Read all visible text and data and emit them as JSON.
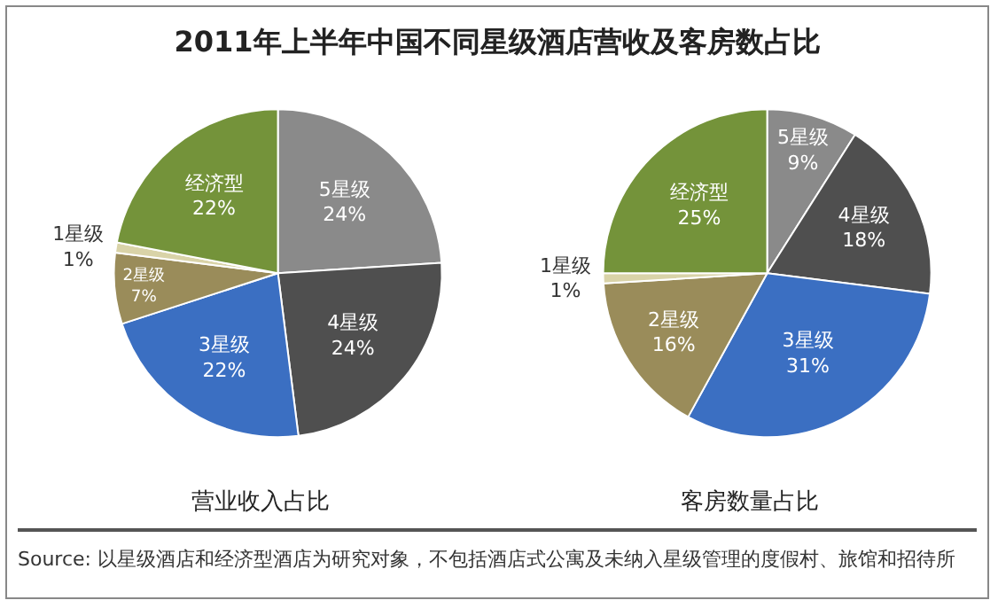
{
  "chart_data": [
    {
      "type": "pie",
      "title": "2011年上半年中国不同星级酒店营收及客房数占比",
      "xlabel": "营业收入占比",
      "categories": [
        "5星级",
        "4星级",
        "3星级",
        "2星级",
        "1星级",
        "经济型"
      ],
      "values": [
        24,
        24,
        22,
        7,
        1,
        22
      ],
      "value_labels": [
        "24%",
        "24%",
        "22%",
        "7%",
        "1%",
        "22%"
      ],
      "colors": [
        "#8a8a8a",
        "#4f4f4f",
        "#3b6fc2",
        "#9a8c5a",
        "#d9d3a8",
        "#74933a"
      ],
      "legend": false
    },
    {
      "type": "pie",
      "xlabel": "客房数量占比",
      "categories": [
        "5星级",
        "4星级",
        "3星级",
        "2星级",
        "1星级",
        "经济型"
      ],
      "values": [
        9,
        18,
        31,
        16,
        1,
        25
      ],
      "value_labels": [
        "9%",
        "18%",
        "31%",
        "16%",
        "1%",
        "25%"
      ],
      "colors": [
        "#8a8a8a",
        "#4f4f4f",
        "#3b6fc2",
        "#9a8c5a",
        "#d9d3a8",
        "#74933a"
      ],
      "legend": false,
      "annotations": [
        "Source: 以星级酒店和经济型酒店为研究对象，不包括酒店式公寓及未纳入星级管理的度假村、旅馆和招待所"
      ]
    }
  ]
}
